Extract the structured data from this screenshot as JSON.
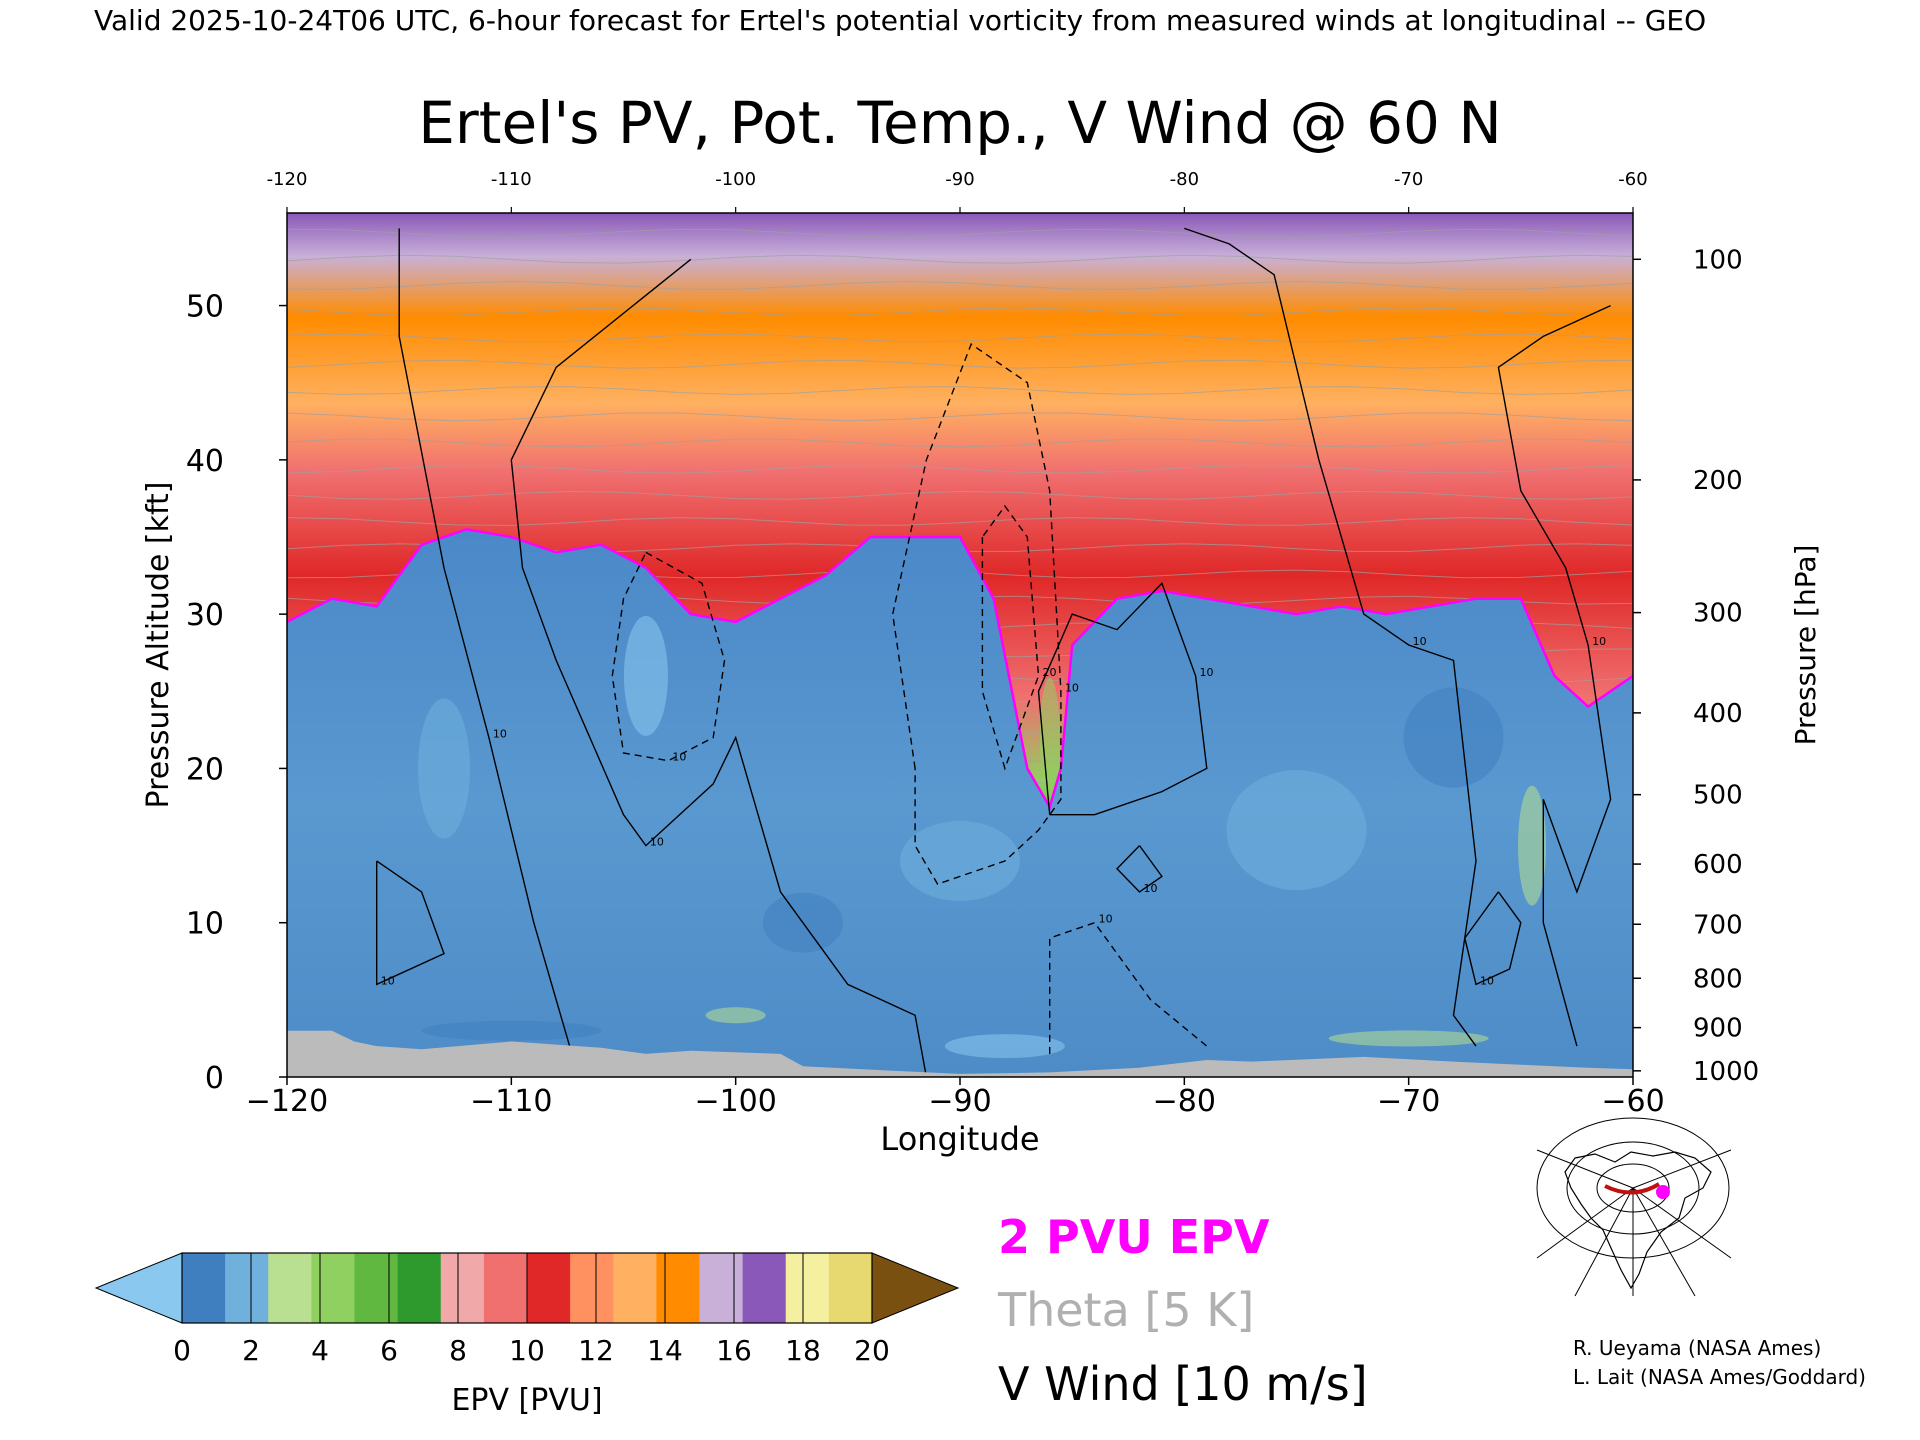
{
  "header": {
    "valid_line": "Valid 2025-10-24T06 UTC, 6-hour forecast for Ertel's potential vorticity from measured winds at longitudinal -- GEO"
  },
  "chart_data": {
    "type": "heatmap",
    "title": "Ertel's PV, Pot. Temp., V Wind @ 60 N",
    "xlabel": "Longitude",
    "ylabel_left": "Pressure Altitude [kft]",
    "ylabel_right": "Pressure [hPa]",
    "xlim": [
      -120,
      -60
    ],
    "ylim_kft": [
      0,
      56
    ],
    "x_ticks": [
      -120,
      -110,
      -100,
      -90,
      -80,
      -70,
      -60
    ],
    "x_tick_labels_bottom": [
      "−120",
      "−110",
      "−100",
      "−90",
      "−80",
      "−70",
      "−60"
    ],
    "x_tick_labels_top": [
      "-120",
      "-110",
      "-100",
      "-90",
      "-80",
      "-70",
      "-60"
    ],
    "y_ticks_kft": [
      0,
      10,
      20,
      30,
      40,
      50
    ],
    "pressure_ticks": [
      {
        "hPa": "100",
        "kft": 53.0
      },
      {
        "hPa": "200",
        "kft": 38.7
      },
      {
        "hPa": "300",
        "kft": 30.1
      },
      {
        "hPa": "400",
        "kft": 23.6
      },
      {
        "hPa": "500",
        "kft": 18.3
      },
      {
        "hPa": "600",
        "kft": 13.8
      },
      {
        "hPa": "700",
        "kft": 9.9
      },
      {
        "hPa": "800",
        "kft": 6.4
      },
      {
        "hPa": "900",
        "kft": 3.2
      },
      {
        "hPa": "1000",
        "kft": 0.4
      }
    ],
    "tropopause_2pvu_kft": [
      [
        -120,
        29.5
      ],
      [
        -118,
        31
      ],
      [
        -116,
        30.5
      ],
      [
        -114,
        34.5
      ],
      [
        -112,
        35.5
      ],
      [
        -110,
        35
      ],
      [
        -108,
        34
      ],
      [
        -106,
        34.5
      ],
      [
        -104,
        33
      ],
      [
        -102,
        30
      ],
      [
        -100,
        29.5
      ],
      [
        -98,
        31
      ],
      [
        -96,
        32.5
      ],
      [
        -94,
        35
      ],
      [
        -92,
        35
      ],
      [
        -90,
        35
      ],
      [
        -88.5,
        31
      ],
      [
        -87,
        20
      ],
      [
        -86,
        17.5
      ],
      [
        -85.5,
        20
      ],
      [
        -85,
        28
      ],
      [
        -83,
        31
      ],
      [
        -81,
        31.5
      ],
      [
        -79,
        31
      ],
      [
        -77,
        30.5
      ],
      [
        -75,
        30
      ],
      [
        -73,
        30.5
      ],
      [
        -71,
        30
      ],
      [
        -69,
        30.5
      ],
      [
        -67,
        31
      ],
      [
        -65,
        31
      ],
      [
        -63.5,
        26
      ],
      [
        -62,
        24
      ],
      [
        -60,
        26
      ]
    ],
    "v_wind_contours": [
      {
        "label": "10",
        "dashed": false,
        "points": [
          [
            -115,
            55
          ],
          [
            -115,
            48
          ],
          [
            -113,
            33
          ],
          [
            -111,
            22
          ],
          [
            -109,
            10
          ],
          [
            -107,
            0
          ]
        ]
      },
      {
        "label": "10",
        "dashed": false,
        "points": [
          [
            -102,
            53
          ],
          [
            -108,
            46
          ],
          [
            -110,
            40
          ],
          [
            -109.5,
            33
          ],
          [
            -108,
            27
          ],
          [
            -105,
            17
          ],
          [
            -104,
            15
          ],
          [
            -101,
            19
          ],
          [
            -100,
            22
          ],
          [
            -98,
            12
          ],
          [
            -95,
            6
          ],
          [
            -92,
            4
          ],
          [
            -91.5,
            0
          ]
        ]
      },
      {
        "label": "10",
        "dashed": true,
        "points": [
          [
            -104,
            34
          ],
          [
            -101.5,
            32
          ],
          [
            -100.5,
            27
          ],
          [
            -101,
            22
          ],
          [
            -103,
            20.5
          ],
          [
            -105,
            21
          ],
          [
            -105.5,
            26
          ],
          [
            -105,
            31
          ],
          [
            -104,
            34
          ]
        ]
      },
      {
        "label": "10",
        "dashed": true,
        "points": [
          [
            -92,
            20
          ],
          [
            -93,
            30
          ],
          [
            -91.5,
            40
          ],
          [
            -89.5,
            47.5
          ],
          [
            -87,
            45
          ],
          [
            -86,
            38
          ],
          [
            -85.5,
            25
          ],
          [
            -85.5,
            18
          ],
          [
            -86.5,
            16
          ],
          [
            -88,
            14
          ],
          [
            -91,
            12.5
          ],
          [
            -92,
            15
          ],
          [
            -92,
            20
          ]
        ]
      },
      {
        "label": "20",
        "dashed": true,
        "points": [
          [
            -89,
            35
          ],
          [
            -89,
            25
          ],
          [
            -88,
            20
          ],
          [
            -86.5,
            26
          ],
          [
            -87,
            35
          ],
          [
            -88,
            37
          ],
          [
            -89,
            35
          ]
        ]
      },
      {
        "label": "10",
        "dashed": false,
        "points": [
          [
            -86,
            17
          ],
          [
            -86.5,
            25
          ],
          [
            -85,
            30
          ],
          [
            -83,
            29
          ],
          [
            -81,
            32
          ],
          [
            -79.5,
            26
          ],
          [
            -79,
            20
          ],
          [
            -81,
            18.5
          ],
          [
            -84,
            17
          ],
          [
            -86,
            17
          ]
        ]
      },
      {
        "label": "10",
        "dashed": true,
        "points": [
          [
            -86,
            1.5
          ],
          [
            -86,
            9
          ],
          [
            -84,
            10
          ],
          [
            -81.5,
            5
          ],
          [
            -79,
            2
          ]
        ]
      },
      {
        "label": "10",
        "dashed": false,
        "points": [
          [
            -80,
            55
          ],
          [
            -78,
            54
          ],
          [
            -76,
            52
          ],
          [
            -74,
            40
          ],
          [
            -72,
            30
          ],
          [
            -70,
            28
          ],
          [
            -68,
            27
          ],
          [
            -67,
            14
          ],
          [
            -68,
            4
          ],
          [
            -67,
            2
          ]
        ]
      },
      {
        "label": "10",
        "dashed": false,
        "points": [
          [
            -61,
            50
          ],
          [
            -64,
            48
          ],
          [
            -66,
            46
          ],
          [
            -65,
            38
          ],
          [
            -63,
            33
          ],
          [
            -62,
            28
          ],
          [
            -61,
            18
          ],
          [
            -62.5,
            12
          ],
          [
            -64,
            18
          ],
          [
            -64,
            10
          ],
          [
            -62.5,
            2
          ]
        ]
      },
      {
        "label": "10",
        "dashed": false,
        "points": [
          [
            -116,
            14
          ],
          [
            -114,
            12
          ],
          [
            -113,
            8
          ],
          [
            -116,
            6
          ],
          [
            -116,
            10
          ],
          [
            -116,
            14
          ]
        ]
      },
      {
        "label": "10",
        "dashed": false,
        "points": [
          [
            -66,
            12
          ],
          [
            -65,
            10
          ],
          [
            -65.5,
            7
          ],
          [
            -67,
            6
          ],
          [
            -67.5,
            9
          ],
          [
            -66,
            12
          ]
        ]
      },
      {
        "label": "10",
        "dashed": false,
        "points": [
          [
            -82,
            15
          ],
          [
            -81,
            13
          ],
          [
            -82,
            12
          ],
          [
            -83,
            13.5
          ],
          [
            -82,
            15
          ]
        ]
      }
    ],
    "legend": {
      "epv_label": "2 PVU EPV",
      "epv_color": "#ff00ff",
      "theta_label": "Theta [5 K]",
      "theta_color": "#b0b0b0",
      "wind_label": "V Wind [10 m/s]",
      "wind_color": "#000000"
    },
    "colorbar": {
      "label": "EPV [PVU]",
      "ticks": [
        "0",
        "2",
        "4",
        "6",
        "8",
        "10",
        "12",
        "14",
        "16",
        "18",
        "20"
      ],
      "colors": [
        "#3f7fc0",
        "#6fb0dd",
        "#b8e090",
        "#90d060",
        "#60b840",
        "#2e9a2e",
        "#f0a8a8",
        "#f07070",
        "#e02828",
        "#ff9060",
        "#ffb060",
        "#ff8c00",
        "#c8b0d8",
        "#8a58b8",
        "#f5f0a0",
        "#e8d870"
      ],
      "under_color": "#8ac8f0",
      "over_color": "#7a5010"
    }
  },
  "credits": {
    "line1": "R. Ueyama (NASA Ames)",
    "line2": "L. Lait (NASA Ames/Goddard)"
  },
  "inset_map": {
    "track_color": "#c01010",
    "marker_color": "#ff00ff"
  }
}
